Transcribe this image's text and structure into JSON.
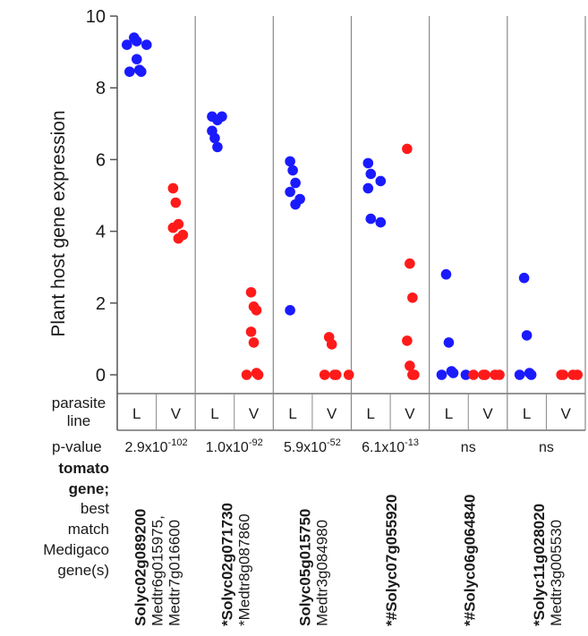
{
  "chart_data": {
    "type": "scatter",
    "ylabel": "Plant host gene expression",
    "ylim": [
      0,
      10
    ],
    "yticks": [
      0,
      2,
      4,
      6,
      8,
      10
    ],
    "colors": {
      "L": "#1a1aff",
      "V": "#ff1a1a"
    },
    "parasite_label": [
      "parasite",
      "line"
    ],
    "pvalue_label": "p-value",
    "legend_text": [
      "tomato",
      "gene;",
      "best",
      "match",
      "Medigaco",
      "gene(s)"
    ],
    "groups": [
      {
        "pvalue_base": "2.9x10",
        "pvalue_exp": "-102",
        "gene": "Solyc02g089200",
        "matches": [
          "Medtr6g015975,",
          "Medtr7g016600"
        ],
        "series": [
          {
            "line": "L",
            "values": [
              9.4,
              9.3,
              9.2,
              9.2,
              8.8,
              8.5,
              8.45,
              8.45
            ]
          },
          {
            "line": "V",
            "values": [
              5.2,
              4.8,
              4.2,
              4.1,
              3.9,
              3.8
            ]
          }
        ]
      },
      {
        "pvalue_base": "1.0x10",
        "pvalue_exp": "-92",
        "gene": "*Solyc02g071730",
        "matches": [
          "*Medtr8g087860"
        ],
        "series": [
          {
            "line": "L",
            "values": [
              7.2,
              7.2,
              7.1,
              6.8,
              6.6,
              6.35
            ]
          },
          {
            "line": "V",
            "values": [
              2.3,
              1.9,
              1.8,
              1.2,
              0.9,
              0.05,
              0.0,
              0.0
            ]
          }
        ]
      },
      {
        "pvalue_base": "5.9x10",
        "pvalue_exp": "-52",
        "gene": "Solyc05g015750",
        "matches": [
          "Medtr3g084980"
        ],
        "series": [
          {
            "line": "L",
            "values": [
              5.95,
              5.7,
              5.35,
              5.1,
              4.9,
              4.75,
              1.8
            ]
          },
          {
            "line": "V",
            "values": [
              1.05,
              0.85,
              0.0,
              0.0,
              0.0,
              0.0
            ]
          }
        ]
      },
      {
        "pvalue_base": "6.1x10",
        "pvalue_exp": "-13",
        "gene": "*#Solyc07g055920",
        "matches": [],
        "series": [
          {
            "line": "L",
            "values": [
              5.9,
              5.6,
              5.4,
              5.2,
              4.35,
              4.25
            ]
          },
          {
            "line": "V",
            "values": [
              6.3,
              3.1,
              2.15,
              0.95,
              0.25,
              0.0,
              0.0
            ]
          }
        ]
      },
      {
        "pvalue_base": "ns",
        "pvalue_exp": "",
        "gene": "*#Solyc06g064840",
        "matches": [],
        "series": [
          {
            "line": "L",
            "values": [
              2.8,
              0.9,
              0.1,
              0.05,
              0.0,
              0.0
            ]
          },
          {
            "line": "V",
            "values": [
              0.0,
              0.0,
              0.0,
              0.0,
              0.0
            ]
          }
        ]
      },
      {
        "pvalue_base": "ns",
        "pvalue_exp": "",
        "gene": "*Solyc11g028020",
        "matches": [
          "Medtr3g005530"
        ],
        "series": [
          {
            "line": "L",
            "values": [
              2.7,
              1.1,
              0.05,
              0.0,
              0.0
            ]
          },
          {
            "line": "V",
            "values": [
              0.0,
              0.0,
              0.0,
              0.0
            ]
          }
        ]
      }
    ]
  }
}
